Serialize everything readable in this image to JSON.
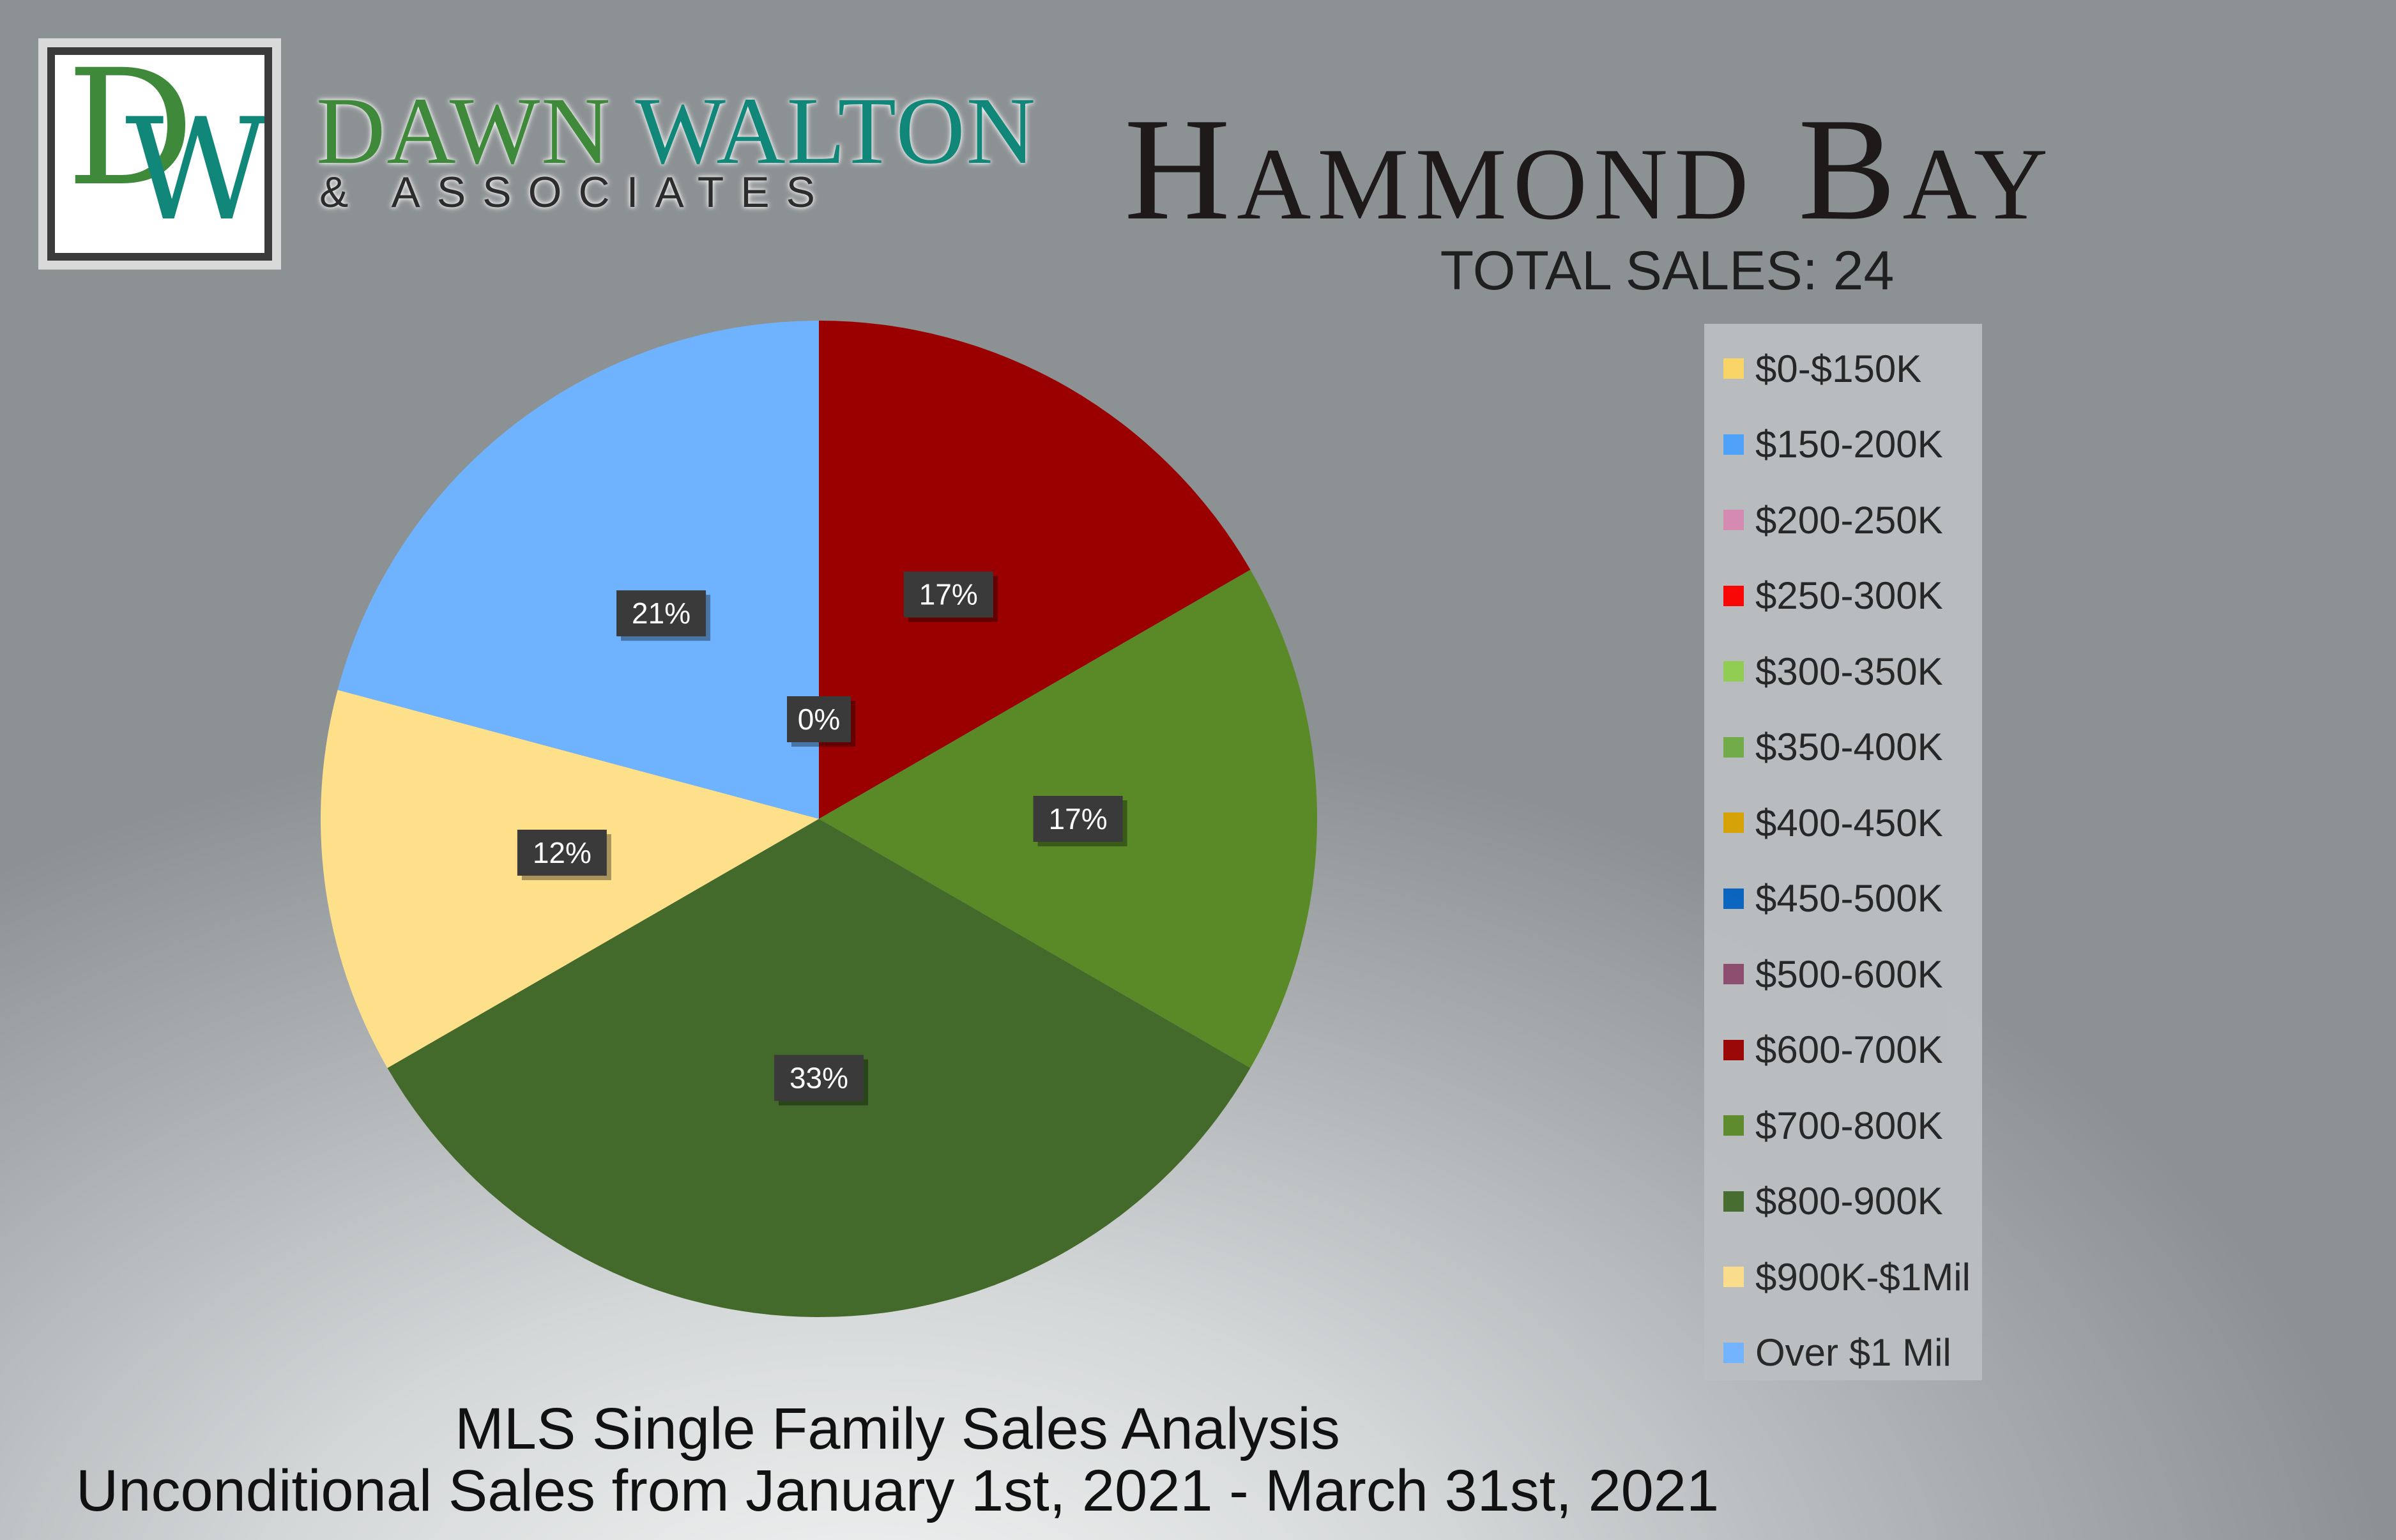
{
  "brand": {
    "logo_letters": "DW",
    "name_part1": "DAWN",
    "name_part2": "WALTON",
    "subline": "& ASSOCIATES"
  },
  "header": {
    "title": "Hammond Bay",
    "total_sales": "TOTAL SALES: 24"
  },
  "footer": {
    "line1": "MLS Single Family Sales Analysis",
    "line2": "Unconditional Sales from January 1st, 2021 - March 31st, 2021"
  },
  "chart_data": {
    "type": "pie",
    "title": "Hammond Bay",
    "start_angle_deg": 0,
    "direction": "clockwise",
    "legend_position": "right",
    "categories": [
      "$0-$150K",
      "$150-200K",
      "$200-250K",
      "$250-300K",
      "$300-350K",
      "$350-400K",
      "$400-450K",
      "$450-500K",
      "$500-600K",
      "$600-700K",
      "$700-800K",
      "$800-900K",
      "$900K-$1Mil",
      "Over $1 Mil"
    ],
    "colors": [
      "#ffd966",
      "#4da3ff",
      "#d98bb3",
      "#ff0000",
      "#92d050",
      "#70ad47",
      "#d9a400",
      "#0563c1",
      "#8e4a6e",
      "#9b0000",
      "#5a8a27",
      "#436a2a",
      "#ffe08a",
      "#6fb3ff"
    ],
    "counts": [
      0,
      0,
      0,
      0,
      0,
      0,
      0,
      0,
      0,
      4,
      4,
      8,
      3,
      5
    ],
    "percent_labels": [
      "0%",
      "",
      "",
      "",
      "",
      "",
      "",
      "",
      "",
      "17%",
      "17%",
      "33%",
      "12%",
      "21%"
    ]
  }
}
